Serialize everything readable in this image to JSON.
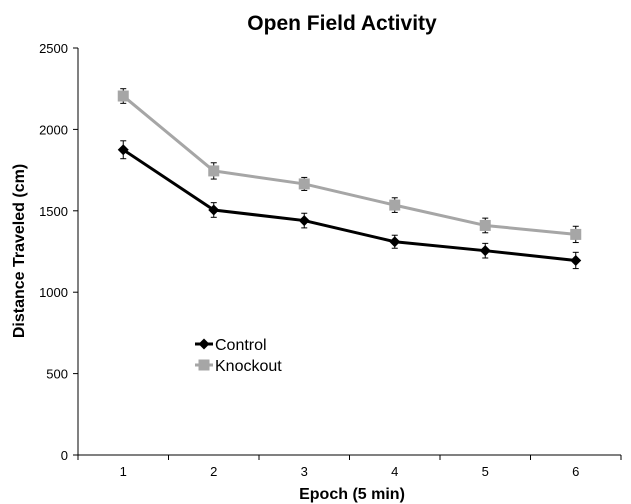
{
  "chart_data": {
    "type": "line",
    "title": "Open Field Activity",
    "xlabel": "Epoch (5 min)",
    "ylabel": "Distance Traveled (cm)",
    "categories": [
      "1",
      "2",
      "3",
      "4",
      "5",
      "6"
    ],
    "ylim": [
      0,
      2500
    ],
    "yticks": [
      "0",
      "500",
      "1000",
      "1500",
      "2000",
      "2500"
    ],
    "grid": false,
    "legend_position": "bottom-left",
    "series": [
      {
        "name": "Control",
        "color": "#000000",
        "marker": "diamond",
        "values": [
          1875,
          1505,
          1440,
          1310,
          1255,
          1195
        ],
        "errors": [
          55,
          45,
          45,
          40,
          45,
          50
        ]
      },
      {
        "name": "Knockout",
        "color": "#a6a6a6",
        "marker": "square",
        "values": [
          2205,
          1745,
          1665,
          1535,
          1410,
          1355
        ],
        "errors": [
          45,
          50,
          40,
          45,
          45,
          50
        ]
      }
    ]
  }
}
